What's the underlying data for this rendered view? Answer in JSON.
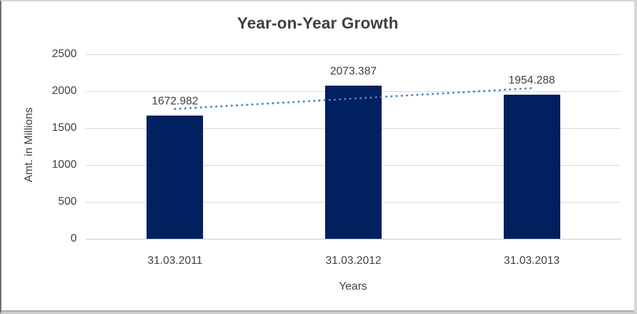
{
  "chart_data": {
    "type": "bar",
    "title": "Year-on-Year Growth",
    "xlabel": "Years",
    "ylabel": "Amt. in Millions",
    "categories": [
      "31.03.2011",
      "31.03.2012",
      "31.03.2013"
    ],
    "values": [
      1672.982,
      2073.387,
      1954.288
    ],
    "data_labels": [
      "1672.982",
      "2073.387",
      "1954.288"
    ],
    "y_ticks": [
      0,
      500,
      1000,
      1500,
      2000,
      2500
    ],
    "ylim": [
      0,
      2500
    ],
    "grid": "horizontal",
    "legend": "none",
    "trendline": {
      "type": "linear",
      "style": "dotted"
    },
    "colors": {
      "bar": "#002060",
      "trendline": "#4A86C8",
      "gridline": "#D9D9D9",
      "axis_line": "#C9C9C9",
      "text": "#404040",
      "title": "#3F3F3F",
      "background": "#FFFFFF",
      "frame_border": "#D6D6D6"
    }
  }
}
